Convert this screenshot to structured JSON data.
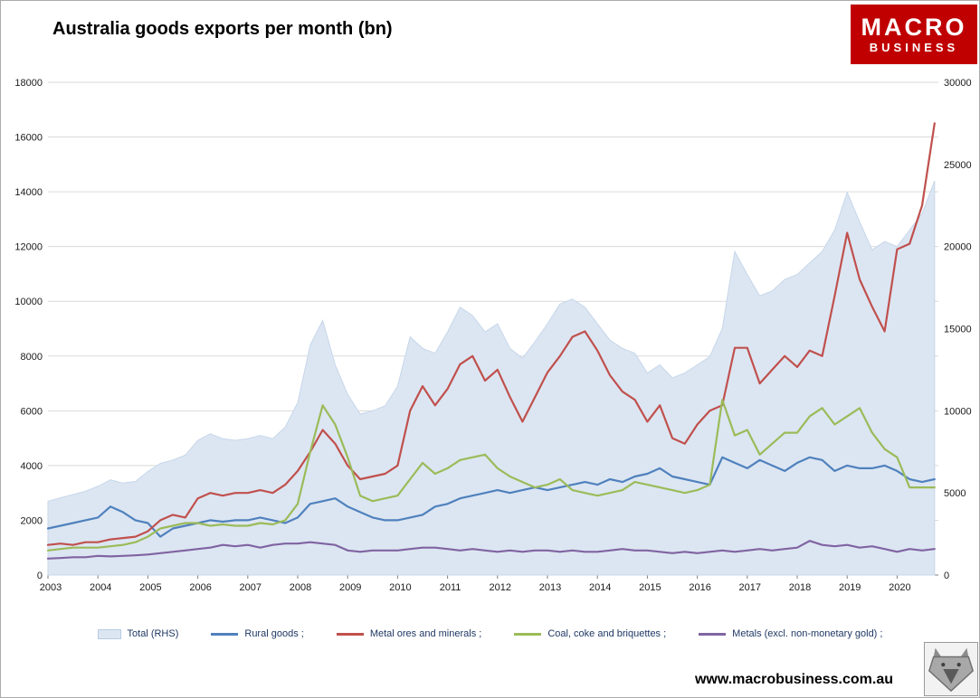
{
  "header": {
    "title": "Australia goods exports per month (bn)"
  },
  "logo": {
    "line1": "MACRO",
    "line2": "BUSINESS",
    "bg_color": "#c00000"
  },
  "footer": {
    "url": "www.macrobusiness.com.au"
  },
  "chart_data": {
    "type": "area+line",
    "title": "Australia goods exports per month (bn)",
    "grid": true,
    "legend_position": "bottom",
    "left_axis": {
      "min": 0,
      "max": 18000,
      "step": 2000
    },
    "right_axis": {
      "min": 0,
      "max": 30000,
      "step": 5000
    },
    "x_ticks": [
      2003,
      2004,
      2005,
      2006,
      2007,
      2008,
      2009,
      2010,
      2011,
      2012,
      2013,
      2014,
      2015,
      2016,
      2017,
      2018,
      2019,
      2020
    ],
    "x": [
      2003,
      2003.25,
      2003.5,
      2003.75,
      2004,
      2004.25,
      2004.5,
      2004.75,
      2005,
      2005.25,
      2005.5,
      2005.75,
      2006,
      2006.25,
      2006.5,
      2006.75,
      2007,
      2007.25,
      2007.5,
      2007.75,
      2008,
      2008.25,
      2008.5,
      2008.75,
      2009,
      2009.25,
      2009.5,
      2009.75,
      2010,
      2010.25,
      2010.5,
      2010.75,
      2011,
      2011.25,
      2011.5,
      2011.75,
      2012,
      2012.25,
      2012.5,
      2012.75,
      2013,
      2013.25,
      2013.5,
      2013.75,
      2014,
      2014.25,
      2014.5,
      2014.75,
      2015,
      2015.25,
      2015.5,
      2015.75,
      2016,
      2016.25,
      2016.5,
      2016.75,
      2017,
      2017.25,
      2017.5,
      2017.75,
      2018,
      2018.25,
      2018.5,
      2018.75,
      2019,
      2019.25,
      2019.5,
      2019.75,
      2020,
      2020.25,
      2020.5,
      2020.75
    ],
    "series": [
      {
        "name": "Total (RHS)",
        "axis": "right",
        "type": "area",
        "color": "#dce6f2",
        "edge": "#c6d6ea",
        "values": [
          4500,
          4700,
          4900,
          5100,
          5400,
          5800,
          5600,
          5700,
          6300,
          6800,
          7000,
          7300,
          8200,
          8600,
          8300,
          8200,
          8300,
          8500,
          8300,
          9000,
          10500,
          14000,
          15500,
          12800,
          11000,
          9800,
          10000,
          10300,
          11500,
          14500,
          13800,
          13500,
          14800,
          16300,
          15800,
          14800,
          15300,
          13800,
          13200,
          14200,
          15300,
          16500,
          16800,
          16300,
          15300,
          14300,
          13800,
          13500,
          12300,
          12800,
          12000,
          12300,
          12800,
          13300,
          15000,
          19700,
          18300,
          17000,
          17300,
          18000,
          18300,
          19000,
          19700,
          21000,
          23300,
          21500,
          19800,
          20300,
          20000,
          21000,
          22000,
          24000
        ]
      },
      {
        "name": "Rural goods ;",
        "axis": "left",
        "type": "line",
        "color": "#4f81bd",
        "values": [
          1700,
          1800,
          1900,
          2000,
          2100,
          2500,
          2300,
          2000,
          1900,
          1400,
          1700,
          1800,
          1900,
          2000,
          1950,
          2000,
          2000,
          2100,
          2000,
          1900,
          2100,
          2600,
          2700,
          2800,
          2500,
          2300,
          2100,
          2000,
          2000,
          2100,
          2200,
          2500,
          2600,
          2800,
          2900,
          3000,
          3100,
          3000,
          3100,
          3200,
          3100,
          3200,
          3300,
          3400,
          3300,
          3500,
          3400,
          3600,
          3700,
          3900,
          3600,
          3500,
          3400,
          3300,
          4300,
          4100,
          3900,
          4200,
          4000,
          3800,
          4100,
          4300,
          4200,
          3800,
          4000,
          3900,
          3900,
          4000,
          3800,
          3500,
          3400,
          3500
        ]
      },
      {
        "name": "Metal ores and minerals ;",
        "axis": "left",
        "type": "line",
        "color": "#c0504d",
        "values": [
          1100,
          1150,
          1100,
          1200,
          1200,
          1300,
          1350,
          1400,
          1600,
          2000,
          2200,
          2100,
          2800,
          3000,
          2900,
          3000,
          3000,
          3100,
          3000,
          3300,
          3800,
          4500,
          5300,
          4800,
          4000,
          3500,
          3600,
          3700,
          4000,
          6000,
          6900,
          6200,
          6800,
          7700,
          8000,
          7100,
          7500,
          6500,
          5600,
          6500,
          7400,
          8000,
          8700,
          8900,
          8200,
          7300,
          6700,
          6400,
          5600,
          6200,
          5000,
          4800,
          5500,
          6000,
          6200,
          8300,
          8300,
          7000,
          7500,
          8000,
          7600,
          8200,
          8000,
          10200,
          12500,
          10800,
          9800,
          8900,
          11900,
          12100,
          13500,
          16500
        ]
      },
      {
        "name": "Coal, coke and briquettes ;",
        "axis": "left",
        "type": "line",
        "color": "#9bbb59",
        "values": [
          900,
          950,
          1000,
          1000,
          1000,
          1050,
          1100,
          1200,
          1400,
          1700,
          1800,
          1900,
          1900,
          1800,
          1850,
          1800,
          1800,
          1900,
          1850,
          2000,
          2600,
          4500,
          6200,
          5500,
          4300,
          2900,
          2700,
          2800,
          2900,
          3500,
          4100,
          3700,
          3900,
          4200,
          4300,
          4400,
          3900,
          3600,
          3400,
          3200,
          3300,
          3500,
          3100,
          3000,
          2900,
          3000,
          3100,
          3400,
          3300,
          3200,
          3100,
          3000,
          3100,
          3300,
          6400,
          5100,
          5300,
          4400,
          4800,
          5200,
          5200,
          5800,
          6100,
          5500,
          5800,
          6100,
          5200,
          4600,
          4300,
          3200,
          3200,
          3200
        ]
      },
      {
        "name": "Metals (excl. non-monetary gold) ;",
        "axis": "left",
        "type": "line",
        "color": "#8064a2",
        "values": [
          600,
          620,
          650,
          650,
          700,
          680,
          700,
          720,
          750,
          800,
          850,
          900,
          950,
          1000,
          1100,
          1050,
          1100,
          1000,
          1100,
          1150,
          1150,
          1200,
          1150,
          1100,
          900,
          850,
          900,
          900,
          900,
          950,
          1000,
          1000,
          950,
          900,
          950,
          900,
          850,
          900,
          850,
          900,
          900,
          850,
          900,
          850,
          850,
          900,
          950,
          900,
          900,
          850,
          800,
          850,
          800,
          850,
          900,
          850,
          900,
          950,
          900,
          950,
          1000,
          1250,
          1100,
          1050,
          1100,
          1000,
          1050,
          950,
          850,
          950,
          900,
          950
        ]
      }
    ]
  }
}
